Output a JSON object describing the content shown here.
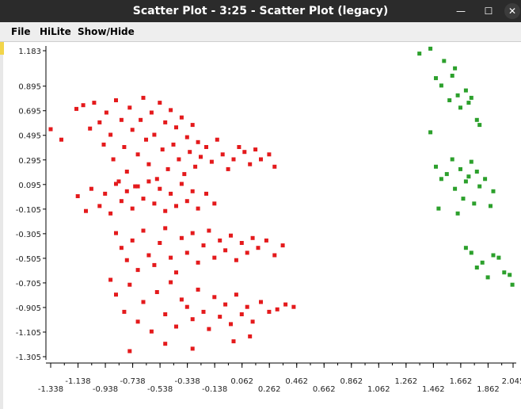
{
  "window": {
    "title": "Scatter Plot - 3:25 - Scatter Plot (legacy)",
    "minimize_glyph": "—",
    "maximize_glyph": "☐",
    "close_glyph": "✕"
  },
  "menu": {
    "file": "File",
    "hilite": "HiLite",
    "show_hide": "Show/Hide"
  },
  "colors": {
    "series_red": "#e41a1c",
    "series_green": "#2ca02c",
    "axis": "#000000",
    "titlebar": "#2b2b2b"
  },
  "chart_data": {
    "type": "scatter",
    "title": "",
    "xlabel": "",
    "ylabel": "",
    "xlim": [
      -1.338,
      2.045
    ],
    "ylim": [
      -1.305,
      1.183
    ],
    "x_ticks_upper": [
      "-1.138",
      "-0.738",
      "-0.338",
      "0.062",
      "0.462",
      "0.862",
      "1.262",
      "1.662",
      "2.045"
    ],
    "x_ticks_lower": [
      "-1.338",
      "-0.938",
      "-0.538",
      "-0.138",
      "0.262",
      "0.662",
      "1.062",
      "1.462",
      "1.862"
    ],
    "y_ticks": [
      "1.183",
      "0.895",
      "0.695",
      "0.495",
      "0.295",
      "0.095",
      "-0.105",
      "-0.305",
      "-0.505",
      "-0.705",
      "-0.905",
      "-1.105",
      "-1.305"
    ],
    "grid": false,
    "legend": "none",
    "series": [
      {
        "color": "#e41a1c",
        "points": [
          [
            -1.338,
            0.545
          ],
          [
            -1.26,
            0.46
          ],
          [
            -1.15,
            0.71
          ],
          [
            -1.1,
            0.74
          ],
          [
            -1.05,
            0.55
          ],
          [
            -1.02,
            0.76
          ],
          [
            -0.98,
            0.6
          ],
          [
            -0.95,
            0.42
          ],
          [
            -0.93,
            0.68
          ],
          [
            -0.9,
            0.5
          ],
          [
            -0.88,
            0.3
          ],
          [
            -0.86,
            0.78
          ],
          [
            -0.84,
            0.12
          ],
          [
            -0.82,
            0.62
          ],
          [
            -0.8,
            0.4
          ],
          [
            -0.78,
            0.2
          ],
          [
            -0.76,
            0.72
          ],
          [
            -0.74,
            0.54
          ],
          [
            -0.72,
            0.08
          ],
          [
            -0.7,
            0.34
          ],
          [
            -0.68,
            0.62
          ],
          [
            -0.66,
            0.8
          ],
          [
            -0.64,
            0.46
          ],
          [
            -0.62,
            0.26
          ],
          [
            -0.6,
            0.68
          ],
          [
            -0.58,
            0.5
          ],
          [
            -0.56,
            0.14
          ],
          [
            -0.54,
            0.76
          ],
          [
            -0.52,
            0.38
          ],
          [
            -0.5,
            0.6
          ],
          [
            -0.48,
            0.22
          ],
          [
            -0.46,
            0.7
          ],
          [
            -0.44,
            0.42
          ],
          [
            -0.42,
            0.56
          ],
          [
            -0.4,
            0.3
          ],
          [
            -0.38,
            0.64
          ],
          [
            -0.36,
            0.18
          ],
          [
            -0.34,
            0.48
          ],
          [
            -0.32,
            0.36
          ],
          [
            -0.3,
            0.58
          ],
          [
            -0.28,
            0.24
          ],
          [
            -0.26,
            0.44
          ],
          [
            -0.24,
            0.32
          ],
          [
            -0.2,
            0.4
          ],
          [
            -0.16,
            0.28
          ],
          [
            -0.12,
            0.46
          ],
          [
            -0.08,
            0.34
          ],
          [
            -0.04,
            0.22
          ],
          [
            0.0,
            0.3
          ],
          [
            0.04,
            0.4
          ],
          [
            0.08,
            0.36
          ],
          [
            0.12,
            0.26
          ],
          [
            0.16,
            0.38
          ],
          [
            0.2,
            0.3
          ],
          [
            0.26,
            0.34
          ],
          [
            0.3,
            0.24
          ],
          [
            -1.14,
            -0.0
          ],
          [
            -1.08,
            -0.12
          ],
          [
            -1.04,
            0.06
          ],
          [
            -0.98,
            -0.08
          ],
          [
            -0.94,
            0.02
          ],
          [
            -0.9,
            -0.14
          ],
          [
            -0.86,
            0.1
          ],
          [
            -0.82,
            -0.04
          ],
          [
            -0.78,
            0.04
          ],
          [
            -0.74,
            -0.1
          ],
          [
            -0.7,
            0.08
          ],
          [
            -0.66,
            -0.02
          ],
          [
            -0.62,
            0.12
          ],
          [
            -0.58,
            -0.06
          ],
          [
            -0.54,
            0.06
          ],
          [
            -0.5,
            -0.12
          ],
          [
            -0.46,
            0.02
          ],
          [
            -0.42,
            -0.08
          ],
          [
            -0.38,
            0.1
          ],
          [
            -0.34,
            -0.04
          ],
          [
            -0.3,
            0.04
          ],
          [
            -0.26,
            -0.1
          ],
          [
            -0.2,
            0.02
          ],
          [
            -0.14,
            -0.06
          ],
          [
            -0.86,
            -0.3
          ],
          [
            -0.82,
            -0.42
          ],
          [
            -0.78,
            -0.52
          ],
          [
            -0.74,
            -0.36
          ],
          [
            -0.7,
            -0.6
          ],
          [
            -0.66,
            -0.28
          ],
          [
            -0.62,
            -0.48
          ],
          [
            -0.58,
            -0.56
          ],
          [
            -0.54,
            -0.38
          ],
          [
            -0.5,
            -0.26
          ],
          [
            -0.46,
            -0.5
          ],
          [
            -0.42,
            -0.62
          ],
          [
            -0.38,
            -0.34
          ],
          [
            -0.34,
            -0.46
          ],
          [
            -0.3,
            -0.3
          ],
          [
            -0.26,
            -0.54
          ],
          [
            -0.22,
            -0.4
          ],
          [
            -0.18,
            -0.28
          ],
          [
            -0.14,
            -0.5
          ],
          [
            -0.1,
            -0.36
          ],
          [
            -0.06,
            -0.44
          ],
          [
            -0.02,
            -0.32
          ],
          [
            0.02,
            -0.52
          ],
          [
            0.06,
            -0.38
          ],
          [
            0.1,
            -0.46
          ],
          [
            0.14,
            -0.34
          ],
          [
            0.18,
            -0.42
          ],
          [
            0.24,
            -0.36
          ],
          [
            0.3,
            -0.48
          ],
          [
            0.36,
            -0.4
          ],
          [
            -0.9,
            -0.68
          ],
          [
            -0.86,
            -0.8
          ],
          [
            -0.8,
            -0.94
          ],
          [
            -0.76,
            -0.72
          ],
          [
            -0.7,
            -1.02
          ],
          [
            -0.66,
            -0.86
          ],
          [
            -0.6,
            -1.1
          ],
          [
            -0.56,
            -0.78
          ],
          [
            -0.5,
            -0.96
          ],
          [
            -0.46,
            -0.7
          ],
          [
            -0.42,
            -1.06
          ],
          [
            -0.38,
            -0.84
          ],
          [
            -0.34,
            -0.9
          ],
          [
            -0.3,
            -1.0
          ],
          [
            -0.26,
            -0.76
          ],
          [
            -0.22,
            -0.94
          ],
          [
            -0.18,
            -1.08
          ],
          [
            -0.14,
            -0.82
          ],
          [
            -0.1,
            -0.98
          ],
          [
            -0.06,
            -0.88
          ],
          [
            -0.02,
            -1.04
          ],
          [
            0.02,
            -0.8
          ],
          [
            0.06,
            -0.96
          ],
          [
            0.1,
            -0.9
          ],
          [
            0.14,
            -1.02
          ],
          [
            0.2,
            -0.86
          ],
          [
            0.26,
            -0.94
          ],
          [
            0.32,
            -0.92
          ],
          [
            0.38,
            -0.88
          ],
          [
            0.44,
            -0.9
          ],
          [
            -0.76,
            -1.26
          ],
          [
            -0.5,
            -1.2
          ],
          [
            -0.3,
            -1.24
          ],
          [
            0.0,
            -1.18
          ],
          [
            0.12,
            -1.14
          ]
        ]
      },
      {
        "color": "#2ca02c",
        "points": [
          [
            1.36,
            1.16
          ],
          [
            1.44,
            1.2
          ],
          [
            1.48,
            0.96
          ],
          [
            1.52,
            0.9
          ],
          [
            1.54,
            1.1
          ],
          [
            1.58,
            0.78
          ],
          [
            1.6,
            0.98
          ],
          [
            1.62,
            1.04
          ],
          [
            1.64,
            0.82
          ],
          [
            1.66,
            0.72
          ],
          [
            1.7,
            0.86
          ],
          [
            1.72,
            0.76
          ],
          [
            1.74,
            0.8
          ],
          [
            1.78,
            0.62
          ],
          [
            1.8,
            0.58
          ],
          [
            1.44,
            0.52
          ],
          [
            1.48,
            0.24
          ],
          [
            1.52,
            0.14
          ],
          [
            1.56,
            0.18
          ],
          [
            1.6,
            0.3
          ],
          [
            1.62,
            0.06
          ],
          [
            1.66,
            0.22
          ],
          [
            1.68,
            -0.02
          ],
          [
            1.7,
            0.12
          ],
          [
            1.72,
            0.16
          ],
          [
            1.74,
            0.28
          ],
          [
            1.76,
            -0.06
          ],
          [
            1.78,
            0.2
          ],
          [
            1.8,
            0.08
          ],
          [
            1.84,
            0.14
          ],
          [
            1.88,
            -0.08
          ],
          [
            1.9,
            0.04
          ],
          [
            1.5,
            -0.1
          ],
          [
            1.64,
            -0.14
          ],
          [
            1.7,
            -0.42
          ],
          [
            1.74,
            -0.46
          ],
          [
            1.78,
            -0.58
          ],
          [
            1.82,
            -0.54
          ],
          [
            1.86,
            -0.66
          ],
          [
            1.9,
            -0.48
          ],
          [
            1.94,
            -0.5
          ],
          [
            1.98,
            -0.62
          ],
          [
            2.02,
            -0.64
          ],
          [
            2.04,
            -0.72
          ]
        ]
      }
    ]
  }
}
